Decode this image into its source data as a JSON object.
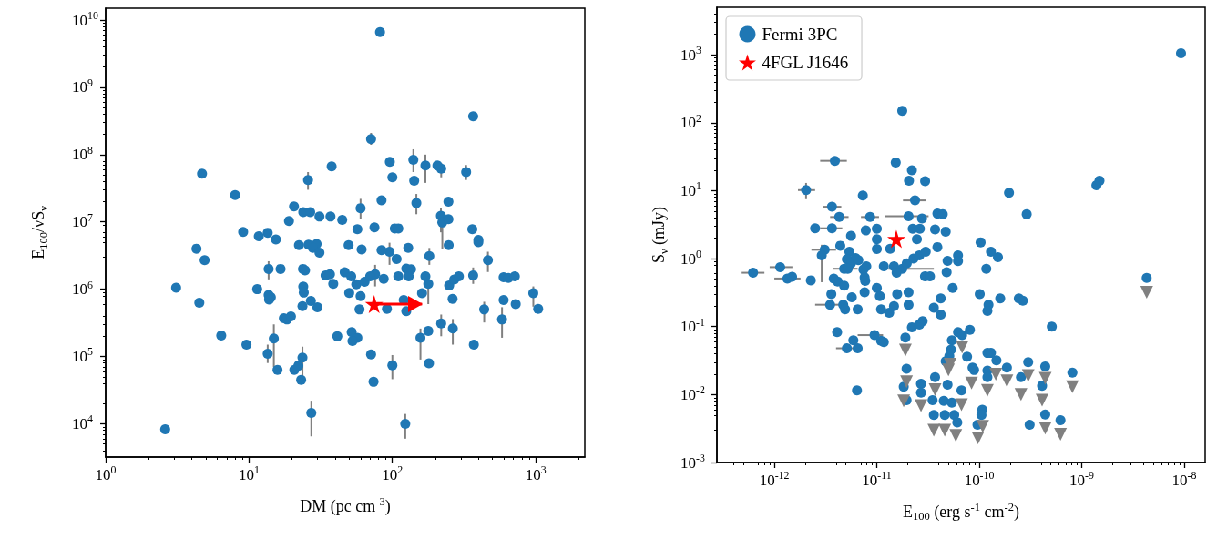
{
  "chart_data": [
    {
      "type": "scatter",
      "xlabel": "DM (pc cm$^{-3}$)",
      "ylabel": "E$_{100}$/νS$_{ν}$",
      "log": "xy",
      "xlim": [
        1,
        2200
      ],
      "ylim": [
        3200,
        15000000000.0
      ],
      "xticks": [
        {
          "value": 1,
          "label": "10$^{0}$"
        },
        {
          "value": 10,
          "label": "10$^{1}$"
        },
        {
          "value": 100,
          "label": "10$^{2}$"
        },
        {
          "value": 1000,
          "label": "10$^{3}$"
        }
      ],
      "yticks": [
        {
          "value": 10000.0,
          "label": "10$^{4}$"
        },
        {
          "value": 100000.0,
          "label": "10$^{5}$"
        },
        {
          "value": 1000000.0,
          "label": "10$^{6}$"
        },
        {
          "value": 10000000.0,
          "label": "10$^{7}$"
        },
        {
          "value": 100000000.0,
          "label": "10$^{8}$"
        },
        {
          "value": 1000000000.0,
          "label": "10$^{9}$"
        },
        {
          "value": 10000000000.0,
          "label": "10$^{10}$"
        }
      ],
      "series": [
        {
          "type": "scatter",
          "color": "#1f77b4",
          "marker": "circle",
          "x": [
            71,
            140,
            170,
            219,
            327,
            25.8,
            60,
            147,
            218,
            223,
            95.5,
            181,
            464,
            13.7,
            75.8,
            178,
            366,
            437,
            962,
            582,
            219,
            264,
            157,
            14.9,
            13.5,
            100,
            23.6,
            27.2,
            123,
            82,
            366,
            4.7,
            37.7,
            96,
            206,
            100,
            142,
            8.0,
            20.6,
            23.9,
            26.7,
            31,
            37,
            44.7,
            19,
            84,
            246,
            246,
            57,
            75,
            104,
            110,
            361,
            9.1,
            11.7,
            13.5,
            15.4,
            398,
            398,
            4.3,
            4.9,
            22.3,
            26,
            29.6,
            27.9,
            31,
            49.5,
            61,
            84,
            107,
            129,
            247,
            16.6,
            23.8,
            24.6,
            34.2,
            36.7,
            38.7,
            46.5,
            51.6,
            56,
            64,
            70,
            87,
            110,
            125,
            135,
            130,
            170,
            249,
            270,
            291,
            597,
            645,
            715,
            3.1,
            11.4,
            23.9,
            24.1,
            4.5,
            13.7,
            14.2,
            13.8,
            50,
            60,
            23.6,
            27,
            30,
            59,
            91.6,
            120,
            125,
            161,
            263,
            597,
            725,
            1040,
            17.5,
            18.4,
            19.6,
            178,
            6.4,
            9.6,
            41.3,
            52,
            57,
            52.7,
            370,
            71,
            180,
            15.8,
            20.7,
            22.1,
            23.1,
            73.9,
            2.6
          ],
          "values": [
            170000000.0,
            84000000.0,
            69000000.0,
            62000000.0,
            55000000.0,
            42000000.0,
            16000000.0,
            19000000.0,
            12300000.0,
            9800000.0,
            3600000.0,
            3100000.0,
            2700000.0,
            2000000.0,
            1670000.0,
            1200000.0,
            1600000.0,
            500000.0,
            870000.0,
            355000.0,
            310000.0,
            260000.0,
            190000.0,
            185000.0,
            110000.0,
            74000.0,
            96000.0,
            14500.0,
            10000.0,
            6600000000.0,
            370000000.0,
            52000000.0,
            67000000.0,
            78000000.0,
            69000000.0,
            46000000.0,
            41000000.0,
            25000000.0,
            17000000.0,
            14000000.0,
            14000000.0,
            12000000.0,
            12000000.0,
            10700000.0,
            10300000.0,
            21000000.0,
            20000000.0,
            11000000.0,
            7800000.0,
            8300000.0,
            8000000.0,
            8000000.0,
            7800000.0,
            7100000.0,
            6100000.0,
            6900000.0,
            5500000.0,
            5400000.0,
            5000000.0,
            4000000.0,
            2700000.0,
            4500000.0,
            4600000.0,
            4700000.0,
            4100000.0,
            3500000.0,
            4500000.0,
            3900000.0,
            3800000.0,
            2800000.0,
            4100000.0,
            4500000.0,
            2000000.0,
            2000000.0,
            1900000.0,
            1600000.0,
            1670000.0,
            1200000.0,
            1780000.0,
            1550000.0,
            1180000.0,
            1290000.0,
            1550000.0,
            1430000.0,
            1550000.0,
            2030000.0,
            1970000.0,
            1550000.0,
            1550000.0,
            1140000.0,
            1390000.0,
            1550000.0,
            1500000.0,
            1470000.0,
            1550000.0,
            1050000.0,
            1000000.0,
            1090000.0,
            890000.0,
            630000.0,
            820000.0,
            760000.0,
            700000.0,
            880000.0,
            790000.0,
            560000.0,
            670000.0,
            540000.0,
            500000.0,
            510000.0,
            690000.0,
            470000.0,
            870000.0,
            720000.0,
            690000.0,
            600000.0,
            510000.0,
            370000.0,
            355000.0,
            395000.0,
            240000.0,
            205000.0,
            150000.0,
            200000.0,
            230000.0,
            190000.0,
            170000.0,
            150000.0,
            107000.0,
            79000.0,
            63000.0,
            63000.0,
            73000.0,
            45000.0,
            42000.0,
            8300.0
          ],
          "errors": [
            [
              140000000.0,
              210000000.0
            ],
            [
              55000000.0,
              120000000.0
            ],
            [
              38000000.0,
              100000000.0
            ],
            [
              46000000.0,
              75000000.0
            ],
            [
              42000000.0,
              70000000.0
            ],
            [
              30000000.0,
              55000000.0
            ],
            [
              11000000.0,
              22000000.0
            ],
            [
              13000000.0,
              26000000.0
            ],
            [
              7000000.0,
              16000000.0
            ],
            [
              4000000.0,
              13000000.0
            ],
            [
              2300000.0,
              4900000.0
            ],
            [
              2300000.0,
              4100000.0
            ],
            [
              1800000.0,
              3600000.0
            ],
            [
              1400000.0,
              2600000.0
            ],
            [
              1100000.0,
              2300000.0
            ],
            [
              600000.0,
              1500000.0
            ],
            [
              1200000.0,
              2100000.0
            ],
            [
              320000.0,
              650000.0
            ],
            [
              550000.0,
              1100000.0
            ],
            [
              190000.0,
              540000.0
            ],
            [
              200000.0,
              420000.0
            ],
            [
              150000.0,
              360000.0
            ],
            [
              90000.0,
              260000.0
            ],
            [
              70000.0,
              300000.0
            ],
            [
              80000.0,
              150000.0
            ],
            [
              46000.0,
              105000.0
            ],
            [
              45000.0,
              140000.0
            ],
            [
              6500.0,
              22000.0
            ],
            [
              6000.0,
              14000.0
            ],
            null,
            null,
            null,
            null,
            null,
            null,
            null,
            null,
            null,
            null,
            null,
            null,
            null,
            null,
            null,
            null,
            null,
            null,
            null,
            null,
            null,
            null,
            null,
            null,
            null,
            null,
            null,
            null,
            null,
            null,
            null,
            null,
            null,
            null,
            null,
            null,
            null,
            null,
            null,
            null,
            null,
            null,
            null,
            null,
            null,
            null,
            null,
            null,
            null,
            null,
            null,
            null,
            null,
            null,
            null,
            null,
            null,
            null,
            null,
            null,
            null,
            null,
            null,
            null,
            null,
            null,
            null,
            null,
            null,
            null,
            null,
            null,
            null,
            null,
            null,
            null,
            null,
            null,
            null,
            null,
            null,
            null,
            null,
            null,
            null,
            null,
            null,
            null,
            null,
            null,
            null,
            null,
            null,
            null,
            null,
            null,
            null,
            null,
            null,
            null,
            null,
            null,
            null,
            null,
            null,
            null,
            null
          ]
        },
        {
          "type": "scatter",
          "color": "#ff0000",
          "marker": "star",
          "x": [
            74.6
          ],
          "values": [
            600000.0
          ],
          "xerrors": [
            [
              74.6,
              161
            ]
          ]
        }
      ]
    },
    {
      "type": "scatter",
      "xlabel": "E$_{100}$ (erg s$^{-1}$ cm$^{-2}$)",
      "ylabel": "S$_{ν}$ (mJy)",
      "log": "xy",
      "xlim": [
        2.75e-13,
        1.6e-08
      ],
      "ylim": [
        0.001,
        5000
      ],
      "legend": "top left",
      "xticks": [
        {
          "value": 1e-12,
          "label": "10$^{-12}$"
        },
        {
          "value": 1e-11,
          "label": "10$^{-11}$"
        },
        {
          "value": 1e-10,
          "label": "10$^{-10}$"
        },
        {
          "value": 1e-09,
          "label": "10$^{-9}$"
        },
        {
          "value": 1e-08,
          "label": "10$^{-8}$"
        }
      ],
      "yticks": [
        {
          "value": 0.001,
          "label": "10$^{-3}$"
        },
        {
          "value": 0.01,
          "label": "10$^{-2}$"
        },
        {
          "value": 0.1,
          "label": "10$^{-1}$"
        },
        {
          "value": 1,
          "label": "10$^{0}$"
        },
        {
          "value": 10,
          "label": "10$^{1}$"
        },
        {
          "value": 100,
          "label": "10$^{2}$"
        },
        {
          "value": 1000,
          "label": "10$^{3}$"
        }
      ],
      "series": [
        {
          "name": "Fermi 3PC",
          "type": "scatter",
          "color": "#1f77b4",
          "marker": "circle",
          "x": [
            3.9e-12,
            2.04e-12,
            2.36e-11,
            3.65e-12,
            4.3e-12,
            8.6e-12,
            2.04e-11,
            3.65e-12,
            3.1e-12,
            2.9e-12,
            4.8e-12,
            6.2e-13,
            1.14e-12,
            1.34e-12,
            1.17e-11,
            1.77e-11,
            3.5e-12,
            9.5e-12,
            5.1e-12,
            9.3e-09,
            1.77e-11,
            1.53e-11,
            2.2e-11,
            2.06e-11,
            2.96e-11,
            7.3e-12,
            1.95e-10,
            1.39e-09,
            1.49e-09,
            2.76e-11,
            3.9e-11,
            4.4e-11,
            2.9e-10,
            2.5e-12,
            5.6e-12,
            7.8e-12,
            1e-11,
            2.24e-11,
            2.63e-11,
            3.7e-11,
            4.7e-11,
            1e-11,
            1e-11,
            1.35e-11,
            2.46e-11,
            4.4e-12,
            5.4e-12,
            6.2e-12,
            5.1e-12,
            5.6e-12,
            6.6e-12,
            5.2e-12,
            1.49e-12,
            2.27e-12,
            7.4e-12,
            7.9e-12,
            7.6e-12,
            7.7e-12,
            1.47e-11,
            1.56e-11,
            1.96e-11,
            2.28e-11,
            2.6e-11,
            3e-11,
            3.9e-11,
            4.9e-11,
            6.2e-11,
            6.2e-11,
            4.8e-11,
            5.5e-11,
            1.03e-10,
            1.3e-10,
            1.52e-10,
            1.17e-10,
            2.95e-11,
            3.3e-11,
            3.8e-12,
            4.15e-12,
            4.8e-12,
            3.6e-12,
            4.7e-12,
            4.9e-12,
            5.7e-12,
            6.5e-12,
            7.6e-12,
            1e-11,
            1.07e-11,
            1.58e-11,
            2.04e-11,
            2.04e-11,
            1.1e-11,
            1.32e-11,
            1.47e-11,
            3.6e-11,
            4.2e-11,
            4.2e-11,
            1.01e-10,
            1.23e-10,
            1.2e-10,
            1.6e-10,
            2.43e-10,
            2.66e-10,
            5.1e-10,
            4.3e-09,
            2.2e-11,
            2.8e-11,
            2.6e-11,
            4.1e-12,
            1.1e-11,
            1.17e-11,
            5.9e-12,
            6.5e-12,
            6.4e-12,
            1.9e-11,
            6.2e-11,
            6.8e-11,
            8.1e-11,
            5.4e-11,
            5.3e-11,
            5.1e-11,
            4.7e-11,
            1.95e-11,
            1.83e-11,
            1.95e-11,
            2.7e-11,
            2.7e-11,
            3.5e-11,
            3.7e-11,
            4.9e-11,
            4.5e-11,
            5.4e-11,
            6.7e-11,
            3.6e-11,
            4.6e-11,
            5.7e-11,
            6.1e-11,
            7.6e-11,
            8.6e-11,
            8.9e-11,
            1.2e-10,
            1.3e-10,
            1.47e-10,
            1.2e-10,
            1.2e-10,
            1.86e-10,
            2.55e-10,
            3e-10,
            4.4e-10,
            4.1e-10,
            8.1e-10,
            1.07e-10,
            1.05e-10,
            9.6e-11,
            3.1e-10,
            4.4e-10,
            6.2e-10
          ],
          "values": [
            27.5,
            10.2,
            7.2,
            5.8,
            4.1,
            4.1,
            4.2,
            2.8,
            1.35,
            1.12,
            0.71,
            0.62,
            0.75,
            0.51,
            0.77,
            0.71,
            0.21,
            0.075,
            0.048,
            1050,
            150,
            26,
            20,
            14,
            13.8,
            8.5,
            9.3,
            12,
            14,
            3.9,
            4.6,
            4.5,
            4.5,
            2.8,
            2.16,
            2.6,
            2.75,
            2.75,
            2.75,
            2.7,
            2.5,
            1.93,
            1.39,
            1.4,
            1.93,
            1.55,
            1.26,
            1.02,
            0.98,
            0.85,
            0.95,
            0.71,
            0.54,
            0.48,
            0.69,
            0.77,
            0.53,
            0.47,
            0.77,
            0.62,
            0.85,
            1.0,
            1.12,
            1.26,
            1.48,
            0.93,
            1.12,
            0.92,
            0.63,
            0.37,
            1.74,
            1.26,
            1.05,
            0.71,
            0.55,
            0.55,
            0.51,
            0.46,
            0.4,
            0.3,
            0.21,
            0.18,
            0.27,
            0.18,
            0.32,
            0.37,
            0.28,
            0.3,
            0.32,
            0.21,
            0.18,
            0.16,
            0.2,
            0.19,
            0.26,
            0.15,
            0.3,
            0.21,
            0.17,
            0.26,
            0.26,
            0.24,
            0.1,
            0.52,
            0.098,
            0.12,
            0.107,
            0.083,
            0.062,
            0.059,
            0.063,
            0.048,
            0.0115,
            0.069,
            0.083,
            0.075,
            0.09,
            0.063,
            0.046,
            0.037,
            0.031,
            0.024,
            0.013,
            0.0083,
            0.0144,
            0.0107,
            0.0083,
            0.018,
            0.014,
            0.0081,
            0.0076,
            0.0115,
            0.005,
            0.005,
            0.005,
            0.0039,
            0.036,
            0.025,
            0.023,
            0.041,
            0.041,
            0.032,
            0.0225,
            0.018,
            0.025,
            0.018,
            0.03,
            0.026,
            0.0135,
            0.021,
            0.006,
            0.005,
            0.0036,
            0.0036,
            0.0051,
            0.0042
          ],
          "xerrors": [
            [
              2.8e-12,
              5.1e-12
            ],
            [
              1.7e-12,
              2.5e-12
            ],
            [
              1.8e-11,
              3e-11
            ],
            [
              3e-12,
              4.5e-12
            ],
            [
              3.5e-12,
              5.3e-12
            ],
            [
              7e-12,
              1.05e-11
            ],
            [
              1.2e-11,
              3.2e-11
            ],
            [
              2.8e-12,
              4.6e-12
            ],
            [
              2.3e-12,
              4e-12
            ],
            null,
            [
              3.7e-12,
              6.5e-12
            ],
            [
              4.8e-13,
              8e-13
            ],
            [
              9e-13,
              1.5e-12
            ],
            [
              1e-12,
              1.8e-12
            ],
            null,
            [
              1.3e-11,
              3.6e-11
            ],
            [
              2.5e-12,
              4.5e-12
            ],
            [
              6.5e-12,
              1.15e-11
            ],
            [
              4e-12,
              6e-12
            ],
            null,
            null,
            null,
            null,
            null,
            null,
            null,
            null,
            null,
            null,
            null,
            null,
            null,
            null,
            null,
            null,
            null,
            null,
            null,
            null,
            null,
            null,
            null,
            null,
            null,
            null,
            null,
            null,
            null,
            null,
            null,
            null,
            null,
            null,
            null,
            null,
            null,
            null,
            null,
            null,
            null,
            null,
            null,
            null,
            null,
            null,
            null,
            null,
            null,
            null,
            null,
            null,
            null,
            null,
            null,
            null,
            null,
            null,
            null,
            null,
            null,
            null,
            null,
            null,
            null,
            null,
            null,
            null,
            null,
            null,
            null,
            null,
            null,
            null,
            null,
            null,
            null,
            null,
            null,
            null,
            null,
            null,
            null,
            null,
            null,
            null,
            null,
            null,
            null,
            null,
            null,
            null,
            null,
            null,
            null,
            null,
            null,
            null,
            null,
            null,
            null,
            null,
            null,
            null,
            null,
            null,
            null,
            null,
            null,
            null,
            null,
            null,
            null,
            null,
            null,
            null,
            null,
            null,
            null,
            null,
            null,
            null,
            null,
            null,
            null,
            null,
            null,
            null,
            null,
            null,
            null,
            null,
            null,
            null,
            null,
            null,
            null
          ],
          "errors": [
            null,
            [
              7.5,
              13
            ],
            null,
            null,
            null,
            null,
            null,
            null,
            null,
            [
              0.45,
              1.6
            ],
            null,
            null,
            null,
            null,
            null,
            null,
            null,
            null,
            null,
            null,
            null,
            null,
            null,
            null,
            null,
            null,
            null,
            null,
            null,
            null,
            null,
            null,
            null,
            null,
            null,
            null,
            null,
            null,
            null,
            null,
            null,
            null,
            null,
            null,
            null,
            null,
            null,
            null,
            null,
            null,
            null,
            null,
            null,
            null,
            null,
            null,
            null,
            null,
            null,
            null,
            null,
            null,
            null,
            null,
            null,
            null,
            null,
            null,
            null,
            null,
            null,
            null,
            null,
            null,
            null,
            null,
            null,
            null,
            null,
            null,
            null,
            null,
            null,
            null,
            null,
            null,
            null,
            null,
            null,
            null,
            null,
            null,
            null,
            null,
            null,
            null,
            null,
            null,
            null,
            null,
            null,
            null,
            null,
            null,
            null,
            null,
            null,
            null,
            null,
            null,
            null,
            null,
            null,
            null,
            null,
            null,
            null,
            null,
            null,
            null,
            null,
            null,
            null,
            null,
            null,
            null,
            null,
            null,
            null,
            null,
            null,
            null,
            null,
            null,
            null,
            null,
            null,
            null,
            null,
            null,
            null,
            null,
            null,
            null,
            null,
            null,
            null,
            null,
            null,
            null,
            null,
            null,
            null,
            null,
            null,
            null
          ]
        },
        {
          "type": "scatter",
          "color": "#808080",
          "marker": "triangle",
          "x": [
            4.3e-09,
            1.9e-11,
            6.8e-11,
            5.2e-11,
            5e-11,
            1.95e-11,
            1.83e-11,
            2.7e-11,
            3.7e-11,
            6.7e-11,
            3.6e-11,
            4.6e-11,
            5.9e-11,
            8.4e-11,
            1.2e-10,
            1.45e-10,
            1.86e-10,
            2.55e-10,
            3e-10,
            4.4e-10,
            4.1e-10,
            8.1e-10,
            9.7e-11,
            1.08e-10,
            4.4e-10,
            6.2e-10
          ],
          "values": [
            0.32,
            0.045,
            0.05,
            0.028,
            0.023,
            0.0155,
            0.0081,
            0.0069,
            0.0118,
            0.0071,
            0.003,
            0.003,
            0.0025,
            0.0148,
            0.0115,
            0.02,
            0.016,
            0.01,
            0.019,
            0.0174,
            0.0083,
            0.013,
            0.0023,
            0.0034,
            0.0032,
            0.0026
          ]
        },
        {
          "name": "4FGL J1646",
          "type": "scatter",
          "color": "#ff0000",
          "marker": "star",
          "x": [
            1.55e-11
          ],
          "values": [
            1.95
          ]
        }
      ]
    }
  ]
}
